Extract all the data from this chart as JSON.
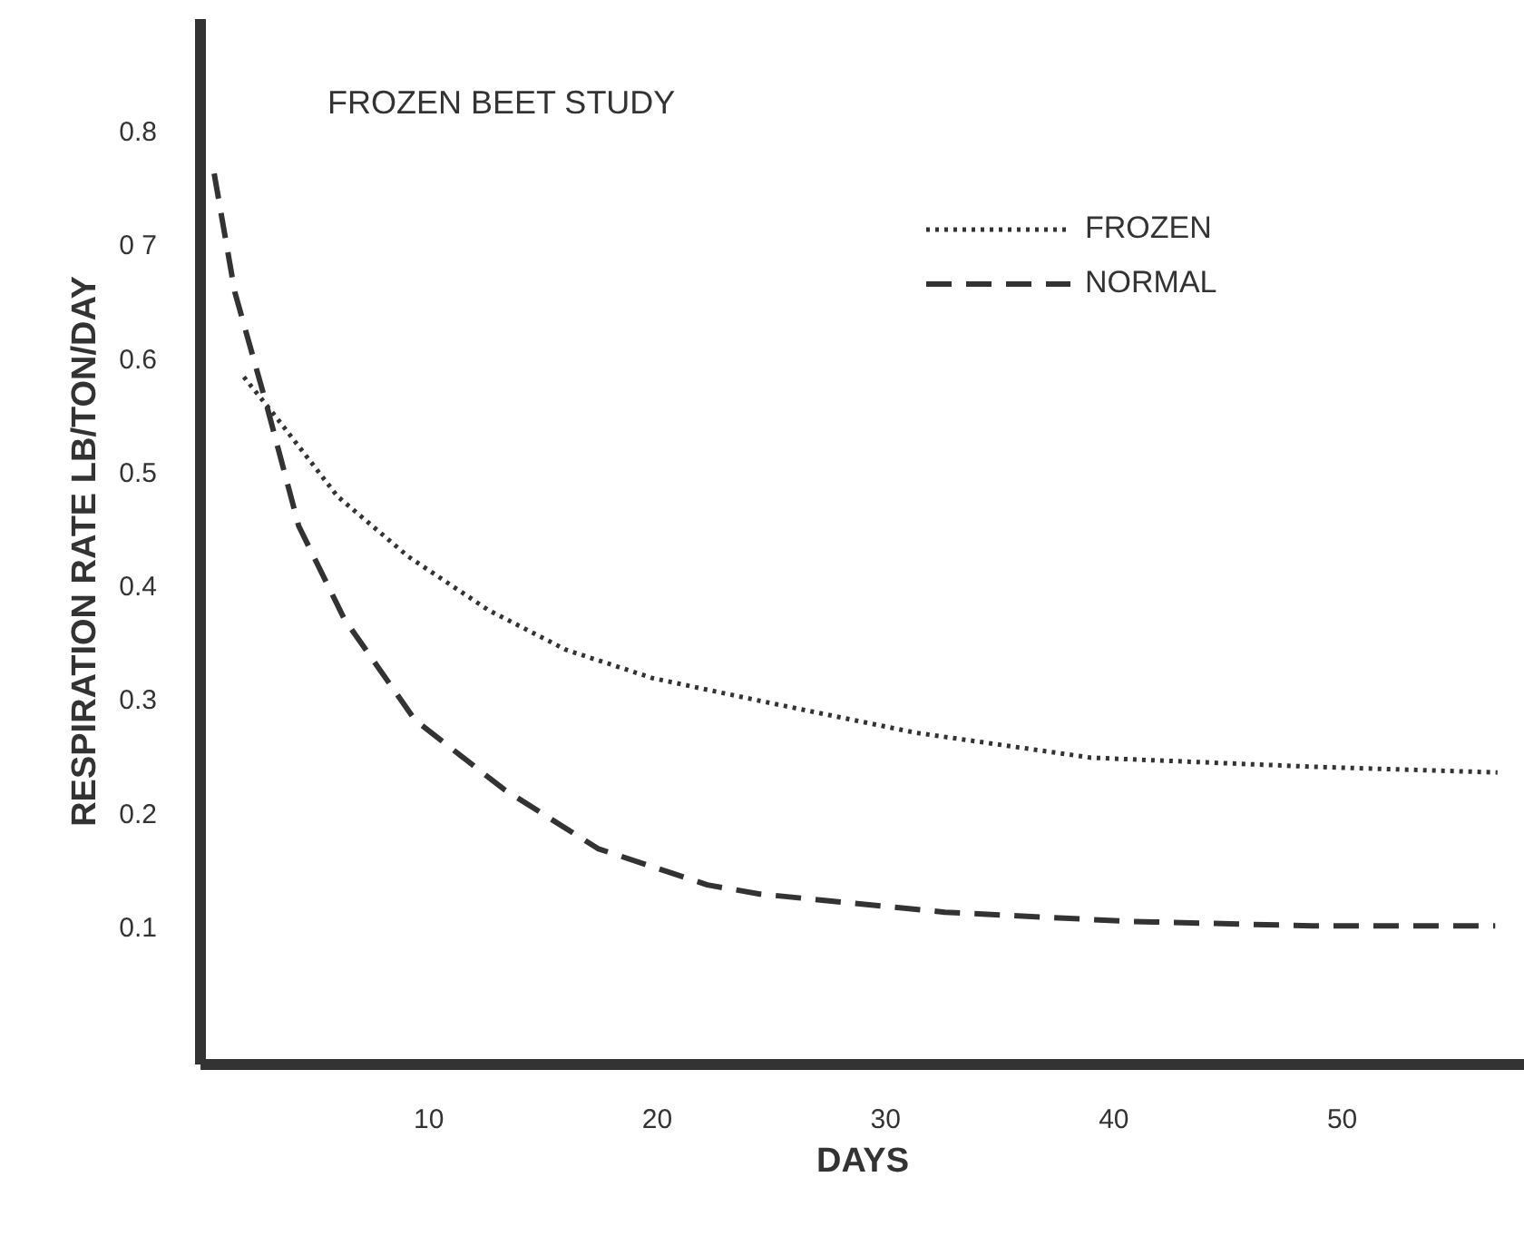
{
  "chart_data": {
    "type": "line",
    "title": "FROZEN BEET STUDY",
    "xlabel": "DAYS",
    "ylabel": "RESPIRATION  RATE  LB/TON/DAY",
    "xlim": [
      0,
      58
    ],
    "ylim": [
      -0.02,
      0.9
    ],
    "xticks": [
      10,
      20,
      30,
      40,
      50
    ],
    "yticks": [
      0.1,
      0.2,
      0.3,
      0.4,
      0.5,
      0.6,
      {
        "value": 0.7,
        "label": "0 7"
      },
      0.8
    ],
    "grid": false,
    "legend": "top right",
    "marker": "none",
    "series": [
      {
        "name": "FROZEN",
        "color": "#333333",
        "line_style": "dotted",
        "x": [
          1.9,
          3.3,
          6.0,
          9.1,
          12.6,
          16,
          19.8,
          24.5,
          31.3,
          39,
          48.7,
          56.8
        ],
        "values": [
          0.585,
          0.55,
          0.48,
          0.427,
          0.38,
          0.345,
          0.32,
          0.3,
          0.272,
          0.25,
          0.242,
          0.237
        ]
      },
      {
        "name": "NORMAL",
        "color": "#333333",
        "line_style": "dashed",
        "x": [
          0.6,
          1.5,
          2.9,
          4.3,
          6.3,
          9.4,
          13.3,
          17.4,
          22.2,
          24.5,
          32.6,
          40.6,
          48.7,
          56.7
        ],
        "values": [
          0.764,
          0.66,
          0.56,
          0.454,
          0.372,
          0.283,
          0.222,
          0.17,
          0.138,
          0.13,
          0.114,
          0.106,
          0.102,
          0.102
        ]
      }
    ]
  }
}
